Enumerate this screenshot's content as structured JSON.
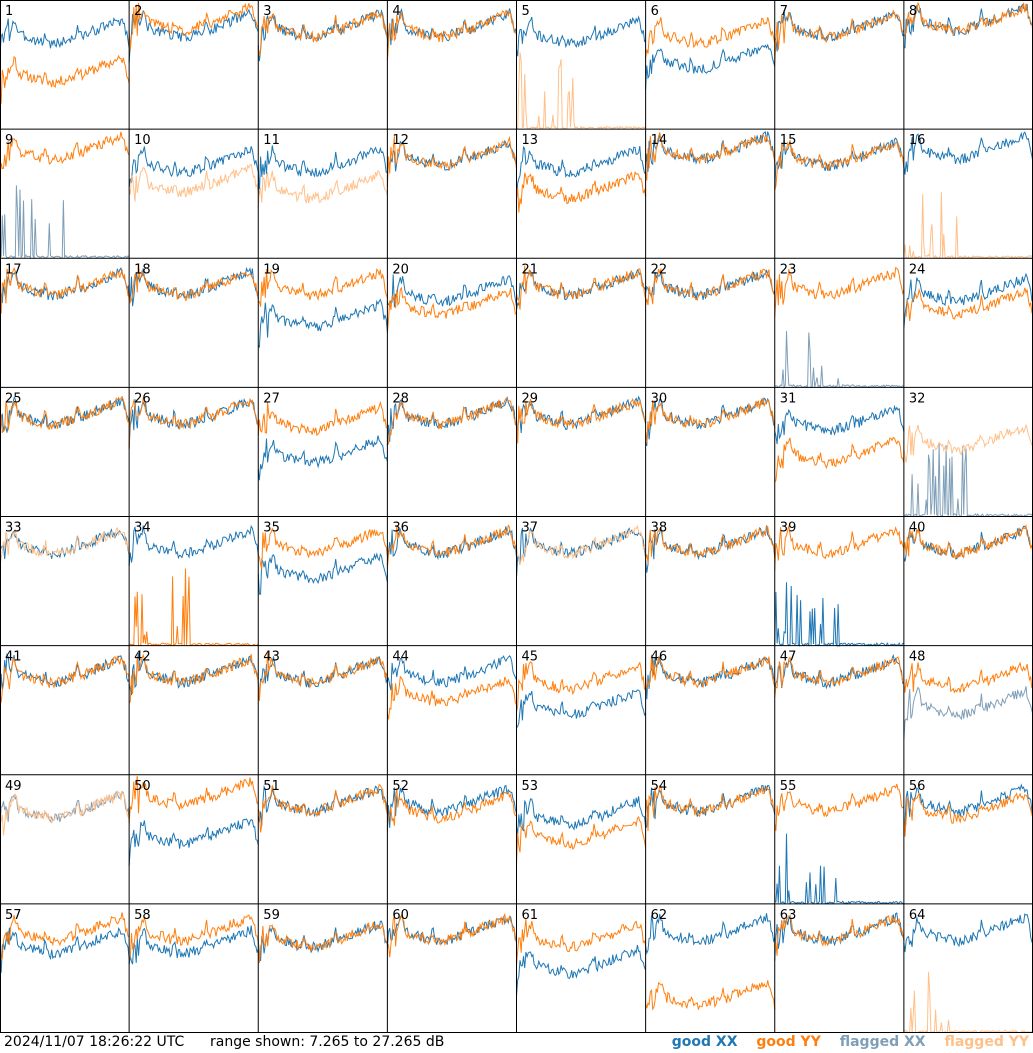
{
  "footer": {
    "timestamp": "2024/11/07 18:26:22 UTC",
    "range_text": "range shown: 7.265 to 27.265 dB"
  },
  "legend": {
    "good_xx": "good XX",
    "good_yy": "good YY",
    "flagged_xx": "flagged XX",
    "flagged_yy": "flagged YY"
  },
  "colors": {
    "good_xx": "#1f77b4",
    "good_yy": "#ff7f0e",
    "flagged_xx": "#7f9fb8",
    "flagged_yy": "#ffc08a",
    "grid": "#000000"
  },
  "chart_data": {
    "type": "line",
    "layout": "8x8 small multiples",
    "ylim": [
      7.265,
      27.265
    ],
    "y_unit": "dB",
    "panels": [
      {
        "id": "1",
        "xx": "good",
        "yy": "good",
        "xx_level": 20,
        "yy_level": 14
      },
      {
        "id": "2",
        "xx": "good",
        "yy": "good",
        "xx_level": 21,
        "yy_level": 22
      },
      {
        "id": "3",
        "xx": "good",
        "yy": "good",
        "xx_level": 21,
        "yy_level": 21
      },
      {
        "id": "4",
        "xx": "good",
        "yy": "good",
        "xx_level": 21,
        "yy_level": 21
      },
      {
        "id": "5",
        "xx": "good",
        "yy": "flagged",
        "xx_level": 20,
        "yy_level": 7.3
      },
      {
        "id": "6",
        "xx": "good",
        "yy": "good",
        "xx_level": 16,
        "yy_level": 20
      },
      {
        "id": "7",
        "xx": "good",
        "yy": "good",
        "xx_level": 21,
        "yy_level": 21
      },
      {
        "id": "8",
        "xx": "good",
        "yy": "good",
        "xx_level": 22,
        "yy_level": 22
      },
      {
        "id": "9",
        "xx": "flagged",
        "yy": "good",
        "xx_level": 8,
        "yy_level": 22
      },
      {
        "id": "10",
        "xx": "good",
        "yy": "flagged",
        "xx_level": 20,
        "yy_level": 17
      },
      {
        "id": "11",
        "xx": "good",
        "yy": "flagged",
        "xx_level": 20,
        "yy_level": 16
      },
      {
        "id": "12",
        "xx": "good",
        "yy": "good",
        "xx_level": 21,
        "yy_level": 21
      },
      {
        "id": "13",
        "xx": "good",
        "yy": "good",
        "xx_level": 20,
        "yy_level": 16
      },
      {
        "id": "14",
        "xx": "good",
        "yy": "good",
        "xx_level": 22,
        "yy_level": 22
      },
      {
        "id": "15",
        "xx": "good",
        "yy": "good",
        "xx_level": 21,
        "yy_level": 21
      },
      {
        "id": "16",
        "xx": "good",
        "yy": "flagged",
        "xx_level": 22,
        "yy_level": 7.3
      },
      {
        "id": "17",
        "xx": "good",
        "yy": "good",
        "xx_level": 21,
        "yy_level": 21
      },
      {
        "id": "18",
        "xx": "good",
        "yy": "good",
        "xx_level": 21,
        "yy_level": 21
      },
      {
        "id": "19",
        "xx": "good",
        "yy": "good",
        "xx_level": 16,
        "yy_level": 21
      },
      {
        "id": "20",
        "xx": "good",
        "yy": "good",
        "xx_level": 20,
        "yy_level": 18
      },
      {
        "id": "21",
        "xx": "good",
        "yy": "good",
        "xx_level": 21,
        "yy_level": 21
      },
      {
        "id": "22",
        "xx": "good",
        "yy": "good",
        "xx_level": 21,
        "yy_level": 21
      },
      {
        "id": "23",
        "xx": "flagged",
        "yy": "good",
        "xx_level": 8,
        "yy_level": 21
      },
      {
        "id": "24",
        "xx": "good",
        "yy": "good",
        "xx_level": 20,
        "yy_level": 18
      },
      {
        "id": "25",
        "xx": "good",
        "yy": "good",
        "xx_level": 21,
        "yy_level": 21
      },
      {
        "id": "26",
        "xx": "good",
        "yy": "good",
        "xx_level": 21,
        "yy_level": 21
      },
      {
        "id": "27",
        "xx": "good",
        "yy": "good",
        "xx_level": 15,
        "yy_level": 20
      },
      {
        "id": "28",
        "xx": "good",
        "yy": "good",
        "xx_level": 21,
        "yy_level": 21
      },
      {
        "id": "29",
        "xx": "good",
        "yy": "good",
        "xx_level": 21,
        "yy_level": 21
      },
      {
        "id": "30",
        "xx": "good",
        "yy": "good",
        "xx_level": 21,
        "yy_level": 21
      },
      {
        "id": "31",
        "xx": "good",
        "yy": "good",
        "xx_level": 20,
        "yy_level": 15
      },
      {
        "id": "32",
        "xx": "flagged",
        "yy": "flagged",
        "xx_level": 7.3,
        "yy_level": 17
      },
      {
        "id": "33",
        "xx": "good",
        "yy": "flagged",
        "xx_level": 21,
        "yy_level": 21
      },
      {
        "id": "34",
        "xx": "good",
        "yy": "good",
        "xx_level": 21,
        "yy_level": 8
      },
      {
        "id": "35",
        "xx": "good",
        "yy": "good",
        "xx_level": 17,
        "yy_level": 21
      },
      {
        "id": "36",
        "xx": "good",
        "yy": "good",
        "xx_level": 21,
        "yy_level": 21
      },
      {
        "id": "37",
        "xx": "good",
        "yy": "flagged",
        "xx_level": 21,
        "yy_level": 21
      },
      {
        "id": "38",
        "xx": "good",
        "yy": "good",
        "xx_level": 21,
        "yy_level": 21
      },
      {
        "id": "39",
        "xx": "good",
        "yy": "good",
        "xx_level": 7.3,
        "yy_level": 21
      },
      {
        "id": "40",
        "xx": "good",
        "yy": "good",
        "xx_level": 21,
        "yy_level": 21
      },
      {
        "id": "41",
        "xx": "good",
        "yy": "good",
        "xx_level": 21,
        "yy_level": 21
      },
      {
        "id": "42",
        "xx": "good",
        "yy": "good",
        "xx_level": 21,
        "yy_level": 21
      },
      {
        "id": "43",
        "xx": "good",
        "yy": "good",
        "xx_level": 21,
        "yy_level": 21
      },
      {
        "id": "44",
        "xx": "good",
        "yy": "good",
        "xx_level": 21,
        "yy_level": 18
      },
      {
        "id": "45",
        "xx": "good",
        "yy": "good",
        "xx_level": 16,
        "yy_level": 20
      },
      {
        "id": "46",
        "xx": "good",
        "yy": "good",
        "xx_level": 21,
        "yy_level": 21
      },
      {
        "id": "47",
        "xx": "good",
        "yy": "good",
        "xx_level": 21,
        "yy_level": 21
      },
      {
        "id": "48",
        "xx": "flagged",
        "yy": "good",
        "xx_level": 16,
        "yy_level": 20
      },
      {
        "id": "49",
        "xx": "flagged",
        "yy": "flagged",
        "xx_level": 20,
        "yy_level": 20
      },
      {
        "id": "50",
        "xx": "good",
        "yy": "good",
        "xx_level": 16,
        "yy_level": 22
      },
      {
        "id": "51",
        "xx": "good",
        "yy": "good",
        "xx_level": 21,
        "yy_level": 21
      },
      {
        "id": "52",
        "xx": "good",
        "yy": "good",
        "xx_level": 21,
        "yy_level": 20
      },
      {
        "id": "53",
        "xx": "good",
        "yy": "good",
        "xx_level": 19,
        "yy_level": 16
      },
      {
        "id": "54",
        "xx": "good",
        "yy": "good",
        "xx_level": 21,
        "yy_level": 21
      },
      {
        "id": "55",
        "xx": "good",
        "yy": "good",
        "xx_level": 8,
        "yy_level": 21
      },
      {
        "id": "56",
        "xx": "good",
        "yy": "good",
        "xx_level": 21,
        "yy_level": 20
      },
      {
        "id": "57",
        "xx": "good",
        "yy": "good",
        "xx_level": 19,
        "yy_level": 21
      },
      {
        "id": "58",
        "xx": "good",
        "yy": "good",
        "xx_level": 19,
        "yy_level": 21
      },
      {
        "id": "59",
        "xx": "good",
        "yy": "good",
        "xx_level": 20,
        "yy_level": 20
      },
      {
        "id": "60",
        "xx": "good",
        "yy": "good",
        "xx_level": 21,
        "yy_level": 21
      },
      {
        "id": "61",
        "xx": "good",
        "yy": "good",
        "xx_level": 16,
        "yy_level": 20
      },
      {
        "id": "62",
        "xx": "good",
        "yy": "good",
        "xx_level": 21,
        "yy_level": 11
      },
      {
        "id": "63",
        "xx": "good",
        "yy": "good",
        "xx_level": 21,
        "yy_level": 21
      },
      {
        "id": "64",
        "xx": "good",
        "yy": "flagged",
        "xx_level": 21,
        "yy_level": 7.3
      }
    ]
  }
}
